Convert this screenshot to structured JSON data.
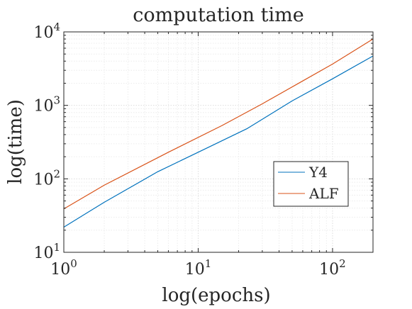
{
  "chart_data": {
    "type": "line",
    "title": "computation time",
    "xlabel": "log(epochs)",
    "ylabel": "log(time)",
    "xscale": "log",
    "yscale": "log",
    "xlim": [
      1,
      200
    ],
    "ylim": [
      10,
      10000
    ],
    "grid": true,
    "minor_grid": true,
    "legend_position": "lower-right",
    "x_ticks": [
      {
        "base": "10",
        "exp": "0"
      },
      {
        "base": "10",
        "exp": "1"
      },
      {
        "base": "10",
        "exp": "2"
      }
    ],
    "y_ticks": [
      {
        "base": "10",
        "exp": "1"
      },
      {
        "base": "10",
        "exp": "2"
      },
      {
        "base": "10",
        "exp": "3"
      },
      {
        "base": "10",
        "exp": "4"
      }
    ],
    "series": [
      {
        "name": "Y4",
        "color": "#0072BD",
        "x": [
          1,
          2,
          5,
          10,
          23,
          50,
          100,
          200
        ],
        "y": [
          22,
          48,
          125,
          230,
          480,
          1150,
          2300,
          4700
        ]
      },
      {
        "name": "ALF",
        "color": "#D95319",
        "x": [
          1,
          2,
          6,
          15,
          30,
          60,
          100,
          200
        ],
        "y": [
          39,
          82,
          230,
          530,
          1050,
          2150,
          3650,
          8000
        ]
      }
    ]
  }
}
